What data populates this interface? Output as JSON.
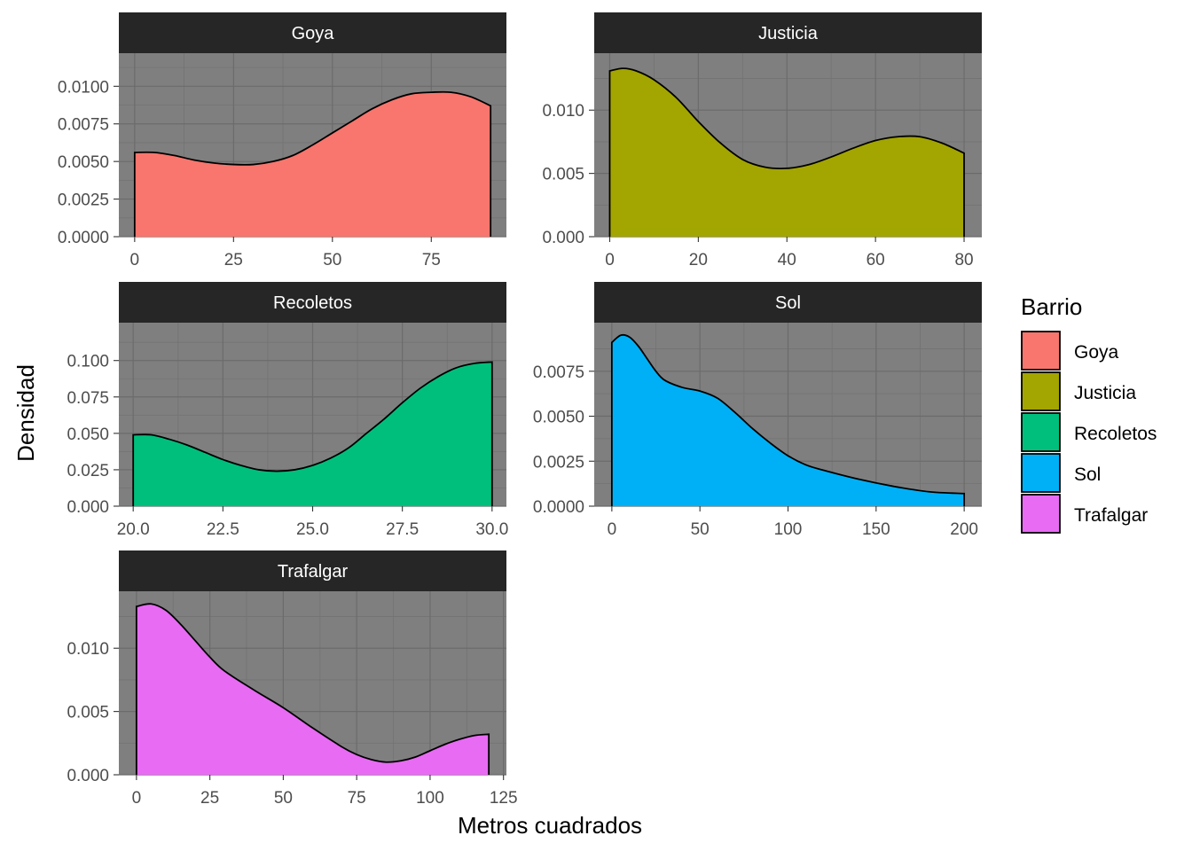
{
  "chart_data": {
    "type": "area",
    "chart_kind": "faceted density plot",
    "xlabel": "Metros cuadrados",
    "ylabel": "Densidad",
    "legend": {
      "title": "Barrio",
      "position": "right",
      "items": [
        {
          "label": "Goya",
          "color": "#F8766D"
        },
        {
          "label": "Justicia",
          "color": "#A3A500"
        },
        {
          "label": "Recoletos",
          "color": "#00BF7D"
        },
        {
          "label": "Sol",
          "color": "#00B0F6"
        },
        {
          "label": "Trafalgar",
          "color": "#E76BF3"
        }
      ]
    },
    "panel_background": "#7F7F7F",
    "strip_background": "#262626",
    "grid": true,
    "facets": [
      {
        "name": "Goya",
        "color": "#F8766D",
        "xlim": [
          -4,
          94
        ],
        "ylim": [
          0,
          0.0122
        ],
        "x_ticks": [
          0,
          25,
          50,
          75
        ],
        "x_tick_labels": [
          "0",
          "25",
          "50",
          "75"
        ],
        "y_ticks": [
          0,
          0.0025,
          0.005,
          0.0075,
          0.01
        ],
        "y_tick_labels": [
          "0.0000",
          "0.0025",
          "0.0050",
          "0.0075",
          "0.0100"
        ],
        "x": [
          0,
          5,
          10,
          15,
          20,
          25,
          30,
          35,
          40,
          45,
          50,
          55,
          60,
          65,
          70,
          75,
          80,
          85,
          90
        ],
        "y": [
          0.0056,
          0.0056,
          0.0054,
          0.0051,
          0.0049,
          0.0048,
          0.0048,
          0.005,
          0.0054,
          0.0061,
          0.0069,
          0.0077,
          0.0085,
          0.0091,
          0.0095,
          0.0096,
          0.0096,
          0.0093,
          0.0087
        ]
      },
      {
        "name": "Justicia",
        "color": "#A3A500",
        "xlim": [
          -3.5,
          84
        ],
        "ylim": [
          0,
          0.0145
        ],
        "x_ticks": [
          0,
          20,
          40,
          60,
          80
        ],
        "x_tick_labels": [
          "0",
          "20",
          "40",
          "60",
          "80"
        ],
        "y_ticks": [
          0,
          0.005,
          0.01
        ],
        "y_tick_labels": [
          "0.000",
          "0.005",
          "0.010"
        ],
        "x": [
          0,
          3,
          6,
          10,
          15,
          20,
          25,
          30,
          35,
          40,
          45,
          50,
          55,
          60,
          65,
          70,
          75,
          80
        ],
        "y": [
          0.0131,
          0.0133,
          0.0131,
          0.0124,
          0.011,
          0.0091,
          0.0074,
          0.0061,
          0.0055,
          0.0054,
          0.0057,
          0.0063,
          0.007,
          0.0076,
          0.0079,
          0.0079,
          0.0074,
          0.0066
        ]
      },
      {
        "name": "Recoletos",
        "color": "#00BF7D",
        "xlim": [
          19.6,
          30.4
        ],
        "ylim": [
          0,
          0.126
        ],
        "x_ticks": [
          20,
          22.5,
          25,
          27.5,
          30
        ],
        "x_tick_labels": [
          "20.0",
          "22.5",
          "25.0",
          "27.5",
          "30.0"
        ],
        "y_ticks": [
          0,
          0.025,
          0.05,
          0.075,
          0.1
        ],
        "y_tick_labels": [
          "0.000",
          "0.025",
          "0.050",
          "0.075",
          "0.100"
        ],
        "x": [
          20,
          20.5,
          21,
          21.5,
          22,
          22.5,
          23,
          23.5,
          24,
          24.5,
          25,
          25.5,
          26,
          26.5,
          27,
          27.5,
          28,
          28.5,
          29,
          29.5,
          30
        ],
        "y": [
          0.049,
          0.049,
          0.046,
          0.042,
          0.037,
          0.032,
          0.028,
          0.025,
          0.024,
          0.025,
          0.028,
          0.033,
          0.04,
          0.05,
          0.06,
          0.071,
          0.081,
          0.089,
          0.095,
          0.098,
          0.099
        ]
      },
      {
        "name": "Sol",
        "color": "#00B0F6",
        "xlim": [
          -10,
          210
        ],
        "ylim": [
          0,
          0.0102
        ],
        "x_ticks": [
          0,
          50,
          100,
          150,
          200
        ],
        "x_tick_labels": [
          "0",
          "50",
          "100",
          "150",
          "200"
        ],
        "y_ticks": [
          0,
          0.0025,
          0.005,
          0.0075
        ],
        "y_tick_labels": [
          "0.0000",
          "0.0025",
          "0.0050",
          "0.0075"
        ],
        "x": [
          0,
          5,
          10,
          15,
          20,
          25,
          30,
          40,
          50,
          60,
          70,
          80,
          90,
          100,
          110,
          120,
          140,
          160,
          180,
          200
        ],
        "y": [
          0.0091,
          0.0095,
          0.0094,
          0.0089,
          0.0082,
          0.0075,
          0.007,
          0.0066,
          0.0064,
          0.006,
          0.0052,
          0.0043,
          0.0035,
          0.0028,
          0.0023,
          0.002,
          0.0015,
          0.0011,
          0.0008,
          0.0007
        ]
      },
      {
        "name": "Trafalgar",
        "color": "#E76BF3",
        "xlim": [
          -6,
          126
        ],
        "ylim": [
          0,
          0.0145
        ],
        "x_ticks": [
          0,
          25,
          50,
          75,
          100,
          125
        ],
        "x_tick_labels": [
          "0",
          "25",
          "50",
          "75",
          "100",
          "125"
        ],
        "y_ticks": [
          0,
          0.005,
          0.01
        ],
        "y_tick_labels": [
          "0.000",
          "0.005",
          "0.010"
        ],
        "x": [
          0,
          5,
          10,
          15,
          20,
          25,
          30,
          40,
          50,
          60,
          70,
          75,
          80,
          85,
          90,
          95,
          100,
          105,
          110,
          115,
          120
        ],
        "y": [
          0.0133,
          0.0135,
          0.013,
          0.0119,
          0.0106,
          0.0093,
          0.0082,
          0.0067,
          0.0053,
          0.0037,
          0.0022,
          0.0016,
          0.0012,
          0.001,
          0.0011,
          0.0014,
          0.0019,
          0.0024,
          0.0028,
          0.0031,
          0.0032
        ]
      }
    ]
  }
}
